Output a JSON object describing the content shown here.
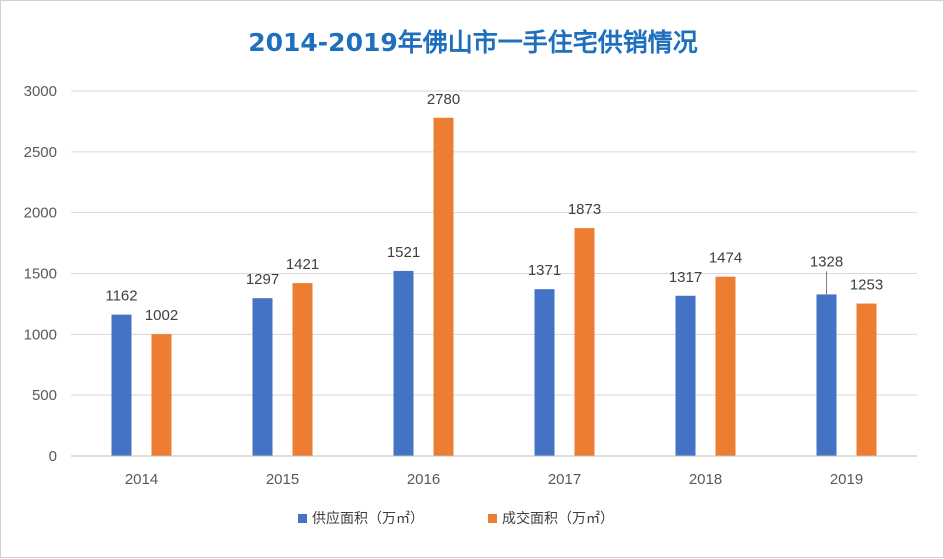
{
  "chart_data": {
    "type": "bar",
    "title": "2014-2019年佛山市一手住宅供销情况",
    "categories": [
      "2014",
      "2015",
      "2016",
      "2017",
      "2018",
      "2019"
    ],
    "series": [
      {
        "name": "供应面积（万㎡）",
        "values": [
          1162,
          1297,
          1521,
          1371,
          1317,
          1328
        ],
        "color": "#4472C4"
      },
      {
        "name": "成交面积（万㎡）",
        "values": [
          1002,
          1421,
          2780,
          1873,
          1474,
          1253
        ],
        "color": "#ED7D31"
      }
    ],
    "yticks": [
      "0",
      "500",
      "1000",
      "1500",
      "2000",
      "2500",
      "3000"
    ],
    "ylim": [
      0,
      3000
    ],
    "grid": true,
    "data_labels": true,
    "legend_position": "bottom",
    "colors": {
      "title": "#1F6FBF",
      "grid": "#D9D9D9",
      "text": "#595959"
    }
  }
}
